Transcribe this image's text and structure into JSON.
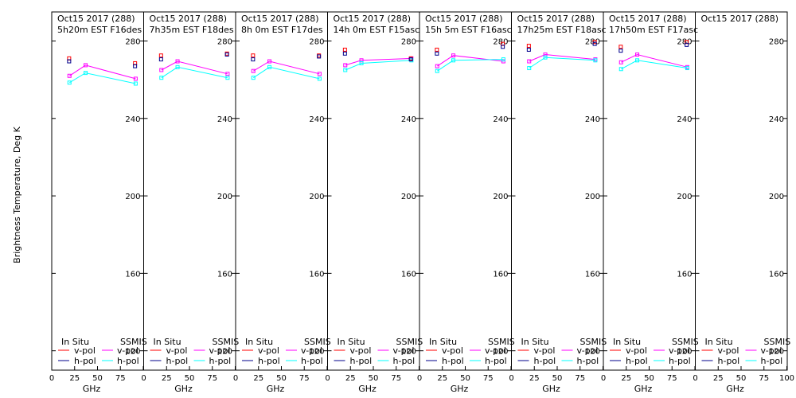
{
  "chart_data": {
    "type": "line",
    "ylabel": "Brightness Temperature, Deg K",
    "xlabel": "GHz",
    "xlim": [
      0,
      100
    ],
    "ylim": [
      110,
      295
    ],
    "yticks": [
      120,
      160,
      200,
      240,
      280
    ],
    "xticks": [
      "0",
      "25",
      "50",
      "75",
      "100"
    ],
    "grid": false,
    "legend": {
      "in_situ": "In Situ",
      "ssmis": "SSMIS",
      "v_pol": "v-pol",
      "h_pol": "h-pol"
    },
    "colors": {
      "insitu_v": "#ff0000",
      "insitu_h": "#00008b",
      "ssmis_v": "#ff00ff",
      "ssmis_h": "#00ffff"
    },
    "panels": [
      {
        "title1": "Oct15 2017 (288)",
        "title2": "5h20m EST F16des",
        "insitu_v": {
          "x": [
            19,
            91
          ],
          "y": [
            271,
            268.5
          ]
        },
        "insitu_h": {
          "x": [
            19,
            91
          ],
          "y": [
            269.5,
            267
          ]
        },
        "ssmis_v": {
          "x": [
            19.35,
            37,
            91.65
          ],
          "y": [
            262,
            267.5,
            260.5
          ]
        },
        "ssmis_h": {
          "x": [
            19.35,
            37,
            91.65
          ],
          "y": [
            258.5,
            263.5,
            258
          ]
        }
      },
      {
        "title1": "Oct15 2017 (288)",
        "title2": "7h35m EST F18des",
        "insitu_v": {
          "x": [
            19,
            91
          ],
          "y": [
            272.5,
            273.5
          ]
        },
        "insitu_h": {
          "x": [
            19,
            91
          ],
          "y": [
            270.5,
            273
          ]
        },
        "ssmis_v": {
          "x": [
            19.35,
            37,
            91.65
          ],
          "y": [
            265,
            269.5,
            263
          ]
        },
        "ssmis_h": {
          "x": [
            19.35,
            37,
            91.65
          ],
          "y": [
            261,
            266.5,
            261
          ]
        }
      },
      {
        "title1": "Oct15 2017 (288)",
        "title2": "8h 0m EST F17des",
        "insitu_v": {
          "x": [
            19,
            91
          ],
          "y": [
            272.5,
            272.5
          ]
        },
        "insitu_h": {
          "x": [
            19,
            91
          ],
          "y": [
            270.5,
            272
          ]
        },
        "ssmis_v": {
          "x": [
            19.35,
            37,
            91.65
          ],
          "y": [
            264.5,
            269.5,
            263
          ]
        },
        "ssmis_h": {
          "x": [
            19.35,
            37,
            91.65
          ],
          "y": [
            261,
            266.5,
            260.5
          ]
        }
      },
      {
        "title1": "Oct15 2017 (288)",
        "title2": "14h 0m EST F15asc",
        "insitu_v": {
          "x": [
            19,
            91
          ],
          "y": [
            275.5,
            271
          ]
        },
        "insitu_h": {
          "x": [
            19,
            91
          ],
          "y": [
            273.5,
            270.5
          ]
        },
        "ssmis_v": {
          "x": [
            19.35,
            37,
            91.65
          ],
          "y": [
            267.5,
            270,
            271
          ]
        },
        "ssmis_h": {
          "x": [
            19.35,
            37,
            91.65
          ],
          "y": [
            265,
            268.5,
            270
          ]
        }
      },
      {
        "title1": "Oct15 2017 (288)",
        "title2": "15h 5m EST F16asc",
        "insitu_v": {
          "x": [
            19,
            91
          ],
          "y": [
            275.5,
            278.5
          ]
        },
        "insitu_h": {
          "x": [
            19,
            91
          ],
          "y": [
            273.5,
            277
          ]
        },
        "ssmis_v": {
          "x": [
            19.35,
            37,
            91.65
          ],
          "y": [
            267,
            272.5,
            269.5
          ]
        },
        "ssmis_h": {
          "x": [
            19.35,
            37,
            91.65
          ],
          "y": [
            264.5,
            270,
            270.5
          ]
        }
      },
      {
        "title1": "Oct15 2017 (288)",
        "title2": "17h25m EST F18asc",
        "insitu_v": {
          "x": [
            19,
            91
          ],
          "y": [
            277.5,
            279.5
          ]
        },
        "insitu_h": {
          "x": [
            19,
            91
          ],
          "y": [
            275.5,
            278.5
          ]
        },
        "ssmis_v": {
          "x": [
            19.35,
            37,
            91.65
          ],
          "y": [
            269.5,
            273,
            270.5
          ]
        },
        "ssmis_h": {
          "x": [
            19.35,
            37,
            91.65
          ],
          "y": [
            266,
            271.5,
            270
          ]
        }
      },
      {
        "title1": "Oct15 2017 (288)",
        "title2": "17h50m EST F17asc",
        "insitu_v": {
          "x": [
            19,
            91
          ],
          "y": [
            277,
            279.5
          ]
        },
        "insitu_h": {
          "x": [
            19,
            91
          ],
          "y": [
            275,
            278
          ]
        },
        "ssmis_v": {
          "x": [
            19.35,
            37,
            91.65
          ],
          "y": [
            269,
            273,
            266.5
          ]
        },
        "ssmis_h": {
          "x": [
            19.35,
            37,
            91.65
          ],
          "y": [
            265.5,
            270,
            266
          ]
        }
      },
      {
        "title1": "Oct15 2017 (288)",
        "title2": "",
        "insitu_v": {
          "x": [],
          "y": []
        },
        "insitu_h": {
          "x": [],
          "y": []
        },
        "ssmis_v": {
          "x": [],
          "y": []
        },
        "ssmis_h": {
          "x": [],
          "y": []
        }
      }
    ]
  }
}
